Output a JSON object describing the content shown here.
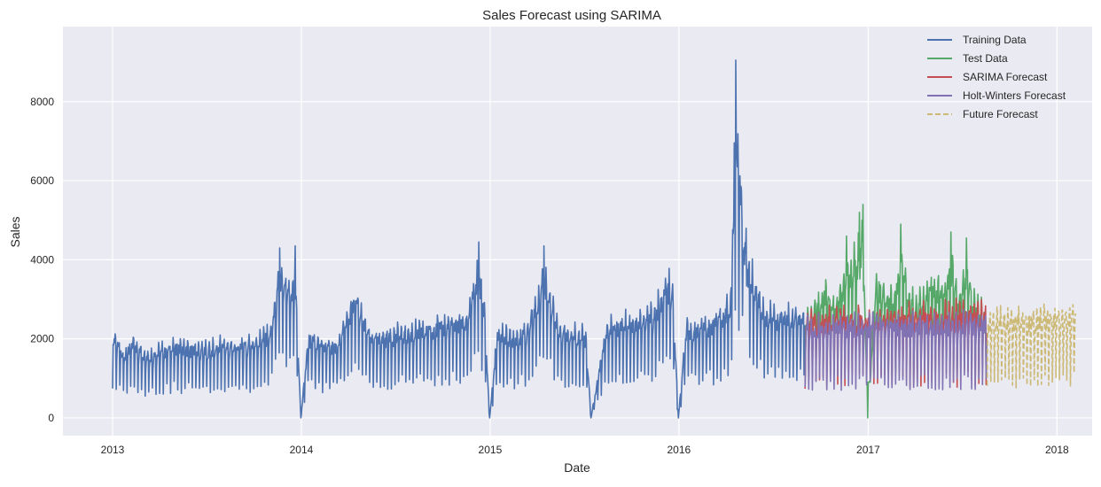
{
  "chart_data": {
    "type": "line",
    "title": "Sales Forecast using SARIMA",
    "xlabel": "Date",
    "ylabel": "Sales",
    "xlim": [
      "2012-09-27",
      "2018-03-10"
    ],
    "ylim": [
      -450,
      9900
    ],
    "x_ticks": [
      "2013",
      "2014",
      "2015",
      "2016",
      "2017",
      "2018"
    ],
    "y_ticks": [
      0,
      2000,
      4000,
      6000,
      8000
    ],
    "grid": true,
    "legend_position": "top-right",
    "series": [
      {
        "name": "Training Data",
        "color": "#4c72b0",
        "style": "solid",
        "x": [
          "2013-01-01",
          "2013-01-20",
          "2013-02-10",
          "2013-03-05",
          "2013-04-01",
          "2013-05-01",
          "2013-06-01",
          "2013-07-01",
          "2013-08-01",
          "2013-09-01",
          "2013-10-01",
          "2013-11-01",
          "2013-11-20",
          "2013-12-10",
          "2013-12-20",
          "2013-12-31",
          "2014-01-15",
          "2014-02-15",
          "2014-03-15",
          "2014-04-15",
          "2014-05-15",
          "2014-06-15",
          "2014-07-15",
          "2014-08-15",
          "2014-09-15",
          "2014-10-15",
          "2014-11-15",
          "2014-12-10",
          "2014-12-20",
          "2014-12-31",
          "2015-01-15",
          "2015-02-15",
          "2015-03-15",
          "2015-04-15",
          "2015-05-15",
          "2015-06-15",
          "2015-07-05",
          "2015-07-15",
          "2015-08-15",
          "2015-09-15",
          "2015-10-15",
          "2015-11-15",
          "2015-12-10",
          "2015-12-20",
          "2015-12-31",
          "2016-01-15",
          "2016-02-15",
          "2016-03-15",
          "2016-04-10",
          "2016-04-20",
          "2016-05-10",
          "2016-06-15",
          "2016-07-15",
          "2016-08-15",
          "2016-09-01"
        ],
        "values": [
          2650,
          1900,
          2300,
          1950,
          2050,
          2200,
          2150,
          2100,
          2250,
          2200,
          2300,
          2600,
          4300,
          3800,
          4350,
          0,
          2500,
          2200,
          2300,
          3700,
          2400,
          2500,
          2600,
          2700,
          2800,
          2900,
          3000,
          4450,
          3500,
          0,
          2600,
          2500,
          2700,
          4350,
          2700,
          2600,
          2500,
          0,
          2800,
          2900,
          3000,
          3200,
          4100,
          3800,
          0,
          2700,
          2800,
          3000,
          3500,
          9050,
          4800,
          3200,
          3100,
          3200,
          2950
        ]
      },
      {
        "name": "Test Data",
        "color": "#55a868",
        "style": "solid",
        "x": [
          "2016-09-01",
          "2016-09-20",
          "2016-10-10",
          "2016-11-01",
          "2016-11-20",
          "2016-12-05",
          "2016-12-15",
          "2016-12-22",
          "2016-12-31",
          "2017-01-15",
          "2017-02-01",
          "2017-02-20",
          "2017-03-05",
          "2017-03-20",
          "2017-04-10",
          "2017-04-25",
          "2017-05-10",
          "2017-05-25",
          "2017-06-10",
          "2017-06-25",
          "2017-07-10",
          "2017-07-25",
          "2017-08-10",
          "2017-08-18"
        ],
        "values": [
          2950,
          3300,
          3850,
          3400,
          4600,
          4450,
          5200,
          5400,
          0,
          4200,
          3900,
          3500,
          4900,
          3600,
          3500,
          3800,
          4200,
          3900,
          4700,
          3600,
          4550,
          3500,
          3300,
          2900
        ]
      },
      {
        "name": "SARIMA Forecast",
        "color": "#c44e52",
        "style": "solid",
        "x": [
          "2016-09-01",
          "2017-08-18"
        ],
        "values": [
          3000,
          3250
        ]
      },
      {
        "name": "Holt-Winters Forecast",
        "color": "#8172b3",
        "style": "solid",
        "x": [
          "2016-09-01",
          "2017-08-18"
        ],
        "values": [
          2800,
          2950
        ]
      },
      {
        "name": "Future Forecast",
        "color": "#ccb974",
        "style": "dashed",
        "x": [
          "2017-08-19",
          "2018-02-06"
        ],
        "values": [
          3000,
          3150
        ]
      }
    ]
  }
}
